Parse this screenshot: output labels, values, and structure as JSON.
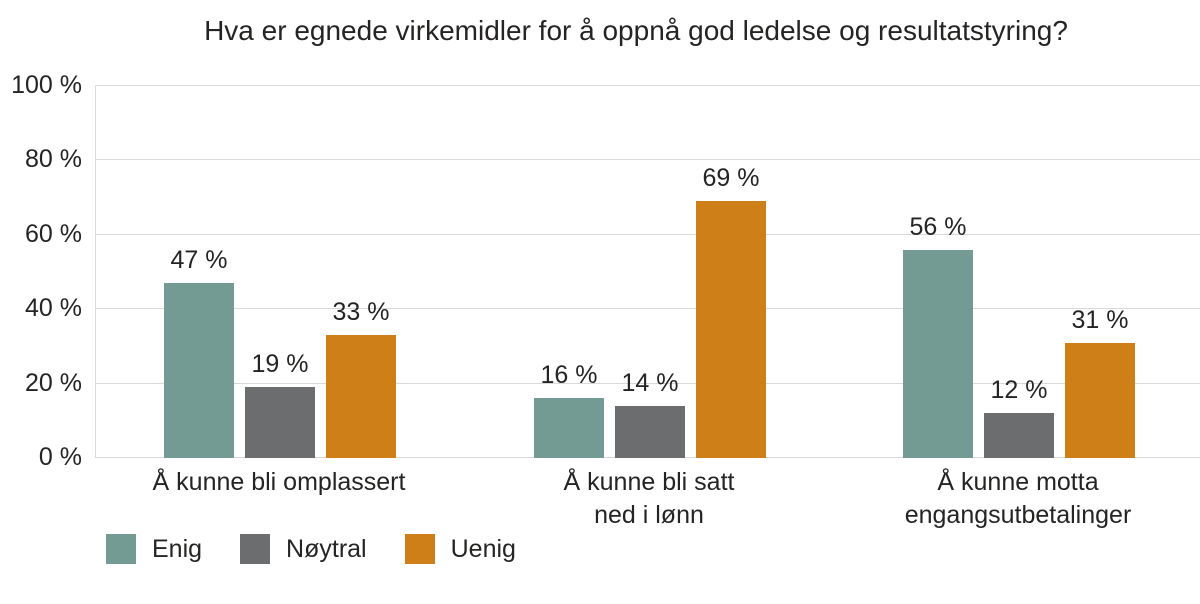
{
  "chart_data": {
    "type": "bar",
    "title": "Hva er egnede virkemidler for å oppnå god ledelse og resultatstyring?",
    "categories": [
      "Å kunne bli omplassert",
      "Å kunne bli satt\nned i lønn",
      "Å kunne motta\nengangsutbetalinger"
    ],
    "series": [
      {
        "name": "Enig",
        "color": "#739a93",
        "values": [
          47,
          16,
          56
        ]
      },
      {
        "name": "Nøytral",
        "color": "#6b6d6f",
        "values": [
          19,
          14,
          12
        ]
      },
      {
        "name": "Uenig",
        "color": "#cf7f18",
        "values": [
          33,
          69,
          31
        ]
      }
    ],
    "value_suffix": " %",
    "y_tick_values": [
      0,
      20,
      40,
      60,
      80,
      100
    ],
    "y_tick_labels": [
      "0 %",
      "20 %",
      "40 %",
      "60 %",
      "80 %",
      "100 %"
    ],
    "ylim": [
      0,
      100
    ],
    "xlabel": "",
    "ylabel": "",
    "grid": true,
    "gridline_color": "#d9d9d9",
    "text_color": "#252423",
    "background_color": "#ffffff",
    "legend_position": "bottom-left",
    "data_labels": true
  }
}
